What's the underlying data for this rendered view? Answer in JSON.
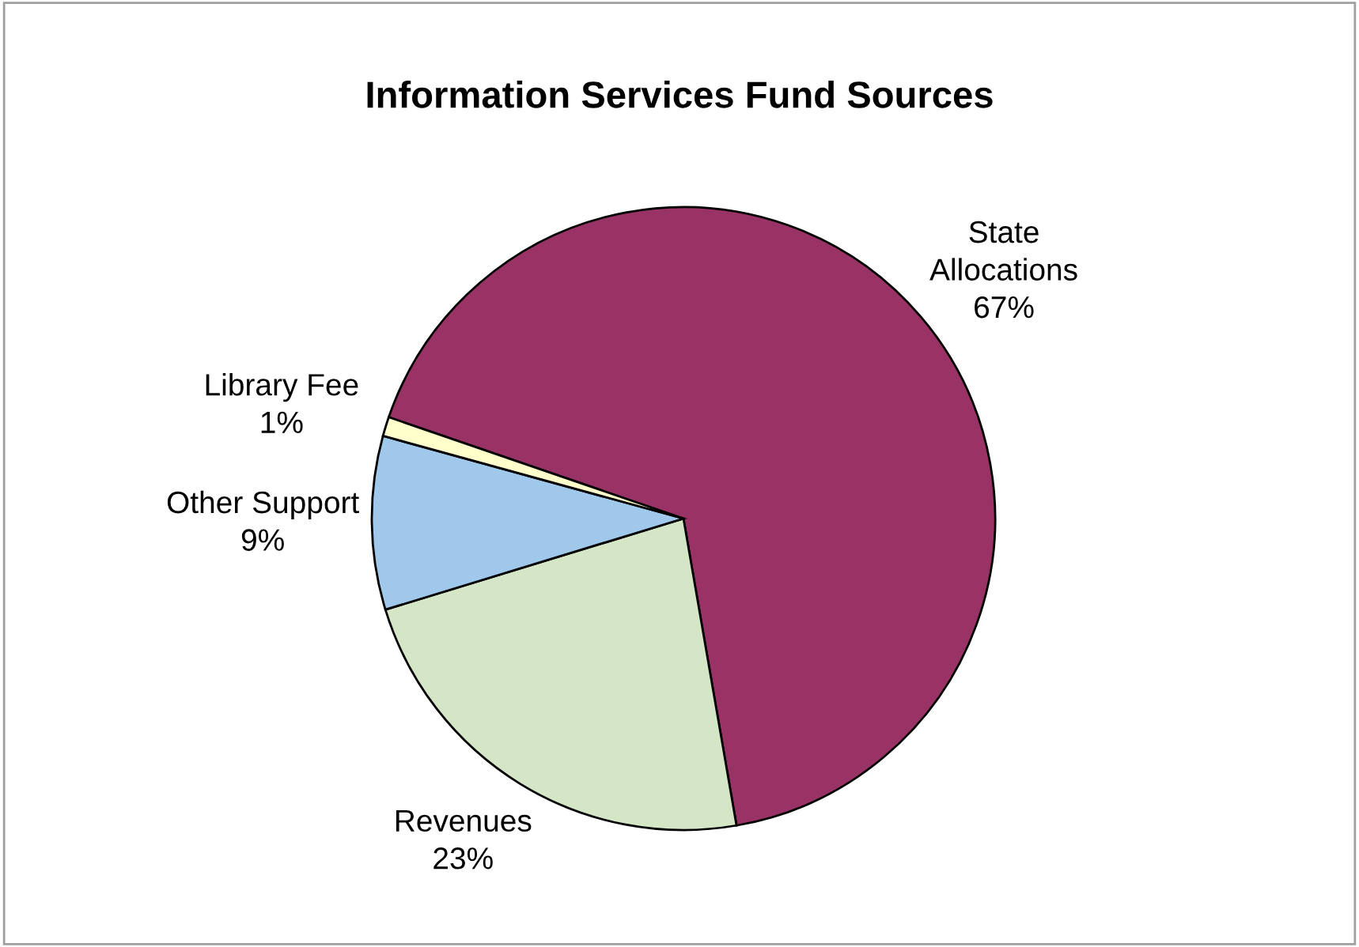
{
  "chart_data": {
    "type": "pie",
    "title": "Information Services Fund Sources",
    "categories": [
      "State\nAllocations",
      "Revenues",
      "Other Support",
      "Library Fee"
    ],
    "values": [
      67,
      23,
      9,
      1
    ],
    "value_labels": [
      "67%",
      "23%",
      "9%",
      "1%"
    ],
    "colors": [
      "#993366",
      "#d4e6c6",
      "#a0c8ea",
      "#ffffcc"
    ],
    "legend": false
  }
}
